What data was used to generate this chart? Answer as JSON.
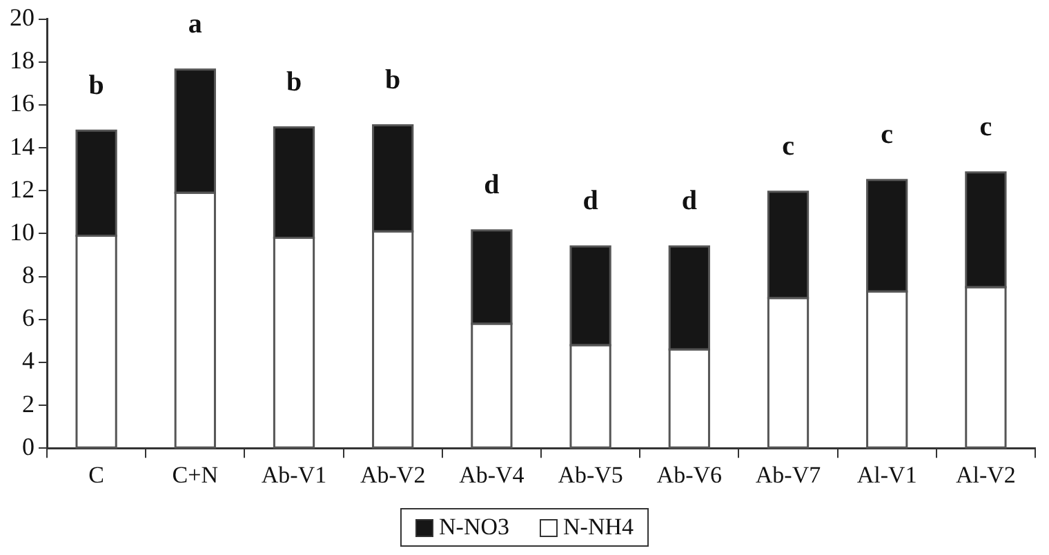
{
  "chart_data": {
    "type": "bar",
    "stacked": true,
    "categories": [
      "C",
      "C+N",
      "Ab-V1",
      "Ab-V2",
      "Ab-V4",
      "Ab-V5",
      "Ab-V6",
      "Ab-V7",
      "Al-V1",
      "Al-V2"
    ],
    "series": [
      {
        "name": "N-NH4",
        "color": "#ffffff",
        "values": [
          9.9,
          11.9,
          9.8,
          10.1,
          5.8,
          4.8,
          4.6,
          7.0,
          7.3,
          7.5
        ]
      },
      {
        "name": "N-NO3",
        "color": "#161616",
        "values": [
          4.9,
          5.75,
          5.15,
          4.95,
          4.35,
          4.6,
          4.8,
          4.95,
          5.2,
          5.35
        ]
      }
    ],
    "ylim": [
      0,
      20
    ],
    "yticks": [
      0,
      2,
      4,
      6,
      8,
      10,
      12,
      14,
      16,
      18,
      20
    ],
    "grid": false,
    "legend": "bottom",
    "annotations": [
      "b",
      "a",
      "b",
      "b",
      "d",
      "d",
      "d",
      "c",
      "c",
      "c"
    ]
  }
}
